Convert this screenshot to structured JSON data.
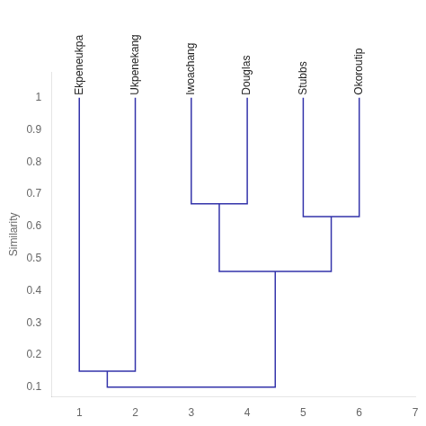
{
  "chart_data": {
    "type": "dendrogram",
    "categories": [
      "Ekpeneukpa",
      "Ukpenekang",
      "Iwoachang",
      "Douglas",
      "Stubbs",
      "Okoroutip"
    ],
    "x": [
      1,
      2,
      3,
      4,
      5,
      6
    ],
    "leaf_height": 1.0,
    "merges": [
      {
        "left": [
          "Ekpeneukpa"
        ],
        "right": [
          "Ukpenekang"
        ],
        "value": 0.15
      },
      {
        "left": [
          "Iwoachang"
        ],
        "right": [
          "Douglas"
        ],
        "value": 0.67
      },
      {
        "left": [
          "Stubbs"
        ],
        "right": [
          "Okoroutip"
        ],
        "value": 0.63
      },
      {
        "left": [
          "Iwoachang",
          "Douglas"
        ],
        "right": [
          "Stubbs",
          "Okoroutip"
        ],
        "value": 0.46
      },
      {
        "left": [
          "Ekpeneukpa",
          "Ukpenekang"
        ],
        "right": [
          "Iwoachang",
          "Douglas",
          "Stubbs",
          "Okoroutip"
        ],
        "value": 0.1
      }
    ],
    "y_label": "Similarity",
    "color": "#3333aa",
    "xlim": [
      0.5,
      7.0
    ],
    "ylim": [
      0.07,
      1.08
    ],
    "xticks": [
      1,
      2,
      3,
      4,
      5,
      6,
      7
    ],
    "yticks": [
      0.1,
      0.2,
      0.3,
      0.4,
      0.5,
      0.6,
      0.7,
      0.8,
      0.9,
      1.0
    ],
    "grid": false
  }
}
